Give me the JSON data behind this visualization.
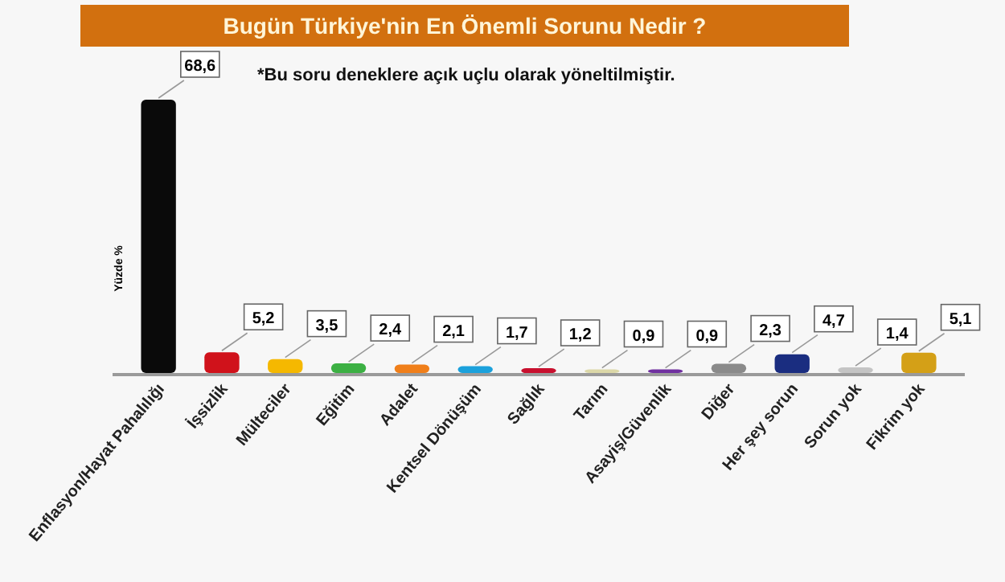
{
  "chart_data": {
    "type": "bar",
    "title": "Bugün Türkiye'nin En Önemli Sorunu Nedir ?",
    "ylabel": "Yüzde %",
    "annotations": [
      "*Bu soru deneklere açık uçlu olarak yöneltilmiştir."
    ],
    "categories": [
      "Enflasyon/Hayat Pahalılığı",
      "İşsizlik",
      "Mülteciler",
      "Eğitim",
      "Adalet",
      "Kentsel Dönüşüm",
      "Sağlık",
      "Tarım",
      "Asayiş/Güvenlik",
      "Diğer",
      "Her şey sorun",
      "Sorun yok",
      "Fikrim yok"
    ],
    "values": [
      68.6,
      5.2,
      3.5,
      2.4,
      2.1,
      1.7,
      1.2,
      0.9,
      0.9,
      2.3,
      4.7,
      1.4,
      5.1
    ],
    "value_labels": [
      "68,6",
      "5,2",
      "3,5",
      "2,4",
      "2,1",
      "1,7",
      "1,2",
      "0,9",
      "0,9",
      "2,3",
      "4,7",
      "1,4",
      "5,1"
    ],
    "colors": [
      "#0a0a0a",
      "#d0121b",
      "#f5b800",
      "#3cb043",
      "#f07f1a",
      "#1ba1dc",
      "#c8102e",
      "#dcd8a8",
      "#7030a0",
      "#8a8a8a",
      "#1a2d80",
      "#c4c4c4",
      "#d4a017"
    ]
  }
}
